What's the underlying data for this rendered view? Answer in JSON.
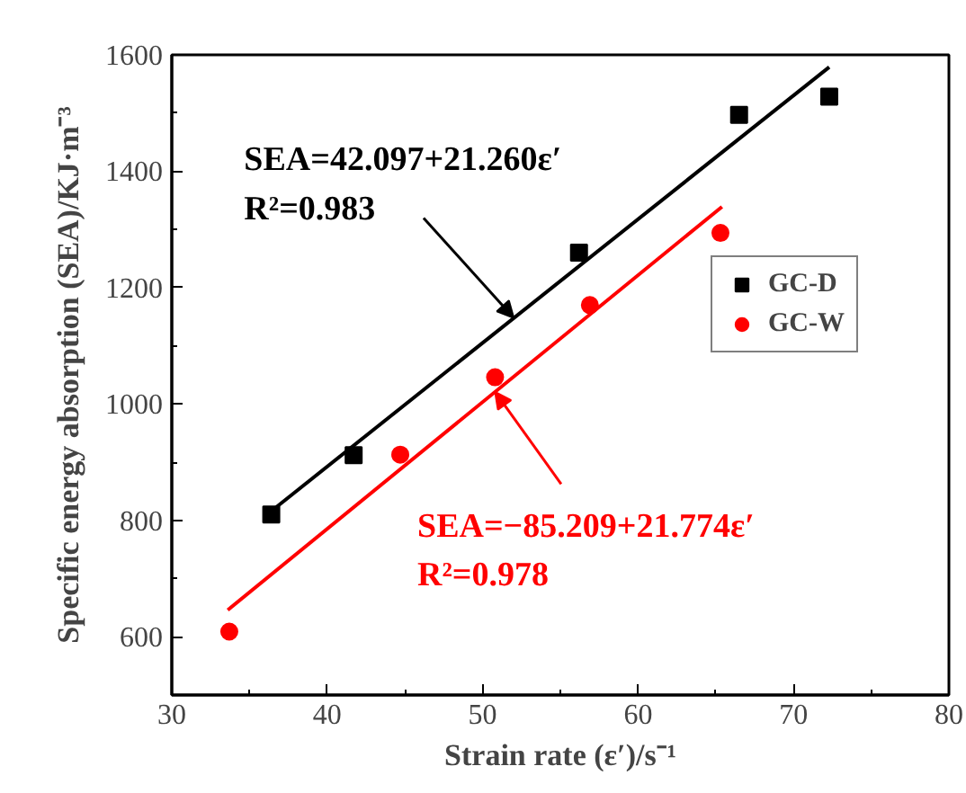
{
  "chart_data": {
    "type": "scatter",
    "xlabel": "Strain rate (ε′)/s⁻¹",
    "ylabel": "Specific energy absorption (SEA)/KJ·m⁻³",
    "xlim": [
      30,
      80
    ],
    "xticks": [
      30,
      40,
      50,
      60,
      70,
      80
    ],
    "ylim": [
      500,
      1600
    ],
    "yticks": [
      600,
      800,
      1000,
      1200,
      1400,
      1600
    ],
    "legend": "right",
    "series": [
      {
        "name": "GC-D",
        "color": "#000000",
        "marker": "square",
        "x": [
          36.4,
          41.7,
          56.2,
          66.5,
          72.3
        ],
        "values": [
          810,
          912,
          1260,
          1497,
          1528
        ]
      },
      {
        "name": "GC-W",
        "color": "#ff0000",
        "marker": "circle",
        "x": [
          33.7,
          44.7,
          50.8,
          56.9,
          65.3
        ],
        "values": [
          609,
          913,
          1046,
          1170,
          1294
        ]
      },
      {
        "type": "line",
        "color": "#000000",
        "x": [
          36.4,
          72.3
        ],
        "values": [
          816,
          1579
        ]
      },
      {
        "type": "line",
        "color": "#ff0000",
        "x": [
          33.6,
          65.4
        ],
        "values": [
          646,
          1339
        ]
      }
    ],
    "annotations": [
      {
        "text": "SEA=42.097+21.260ε′\nR²=0.983",
        "x": 52.0,
        "y": 1148
      },
      {
        "text": "SEA=−85.209+21.774ε′\nR²=0.978",
        "x": 50.8,
        "y": 1021
      }
    ]
  }
}
